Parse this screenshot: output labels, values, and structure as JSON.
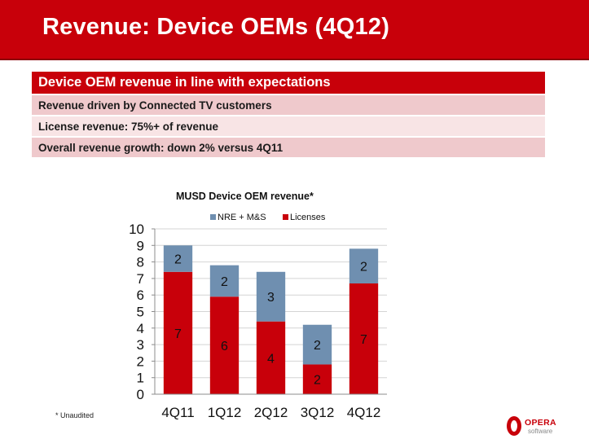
{
  "slide": {
    "title": "Revenue: Device OEMs (4Q12)"
  },
  "summary": {
    "heading": "Device OEM revenue in line with expectations",
    "bullets": [
      "Revenue driven by Connected TV customers",
      "License revenue: 75%+ of revenue",
      "Overall revenue growth: down 2% versus 4Q11"
    ]
  },
  "footnote": "* Unaudited",
  "logo": {
    "word": "OPERA",
    "sub": "software"
  },
  "colors": {
    "brand_red": "#c8000a",
    "licenses": "#c8000a",
    "nre": "#6f8fb0"
  },
  "chart_data": {
    "type": "bar",
    "stacked": true,
    "title": "MUSD Device OEM revenue*",
    "categories": [
      "4Q11",
      "1Q12",
      "2Q12",
      "3Q12",
      "4Q12"
    ],
    "series": [
      {
        "name": "Licenses",
        "values": [
          7.4,
          5.9,
          4.4,
          1.8,
          6.7
        ],
        "labels": [
          "7",
          "6",
          "4",
          "2",
          "7"
        ],
        "color": "#c8000a"
      },
      {
        "name": "NRE + M&S",
        "values": [
          1.6,
          1.9,
          3.0,
          2.4,
          2.1
        ],
        "labels": [
          "2",
          "2",
          "3",
          "2",
          "2"
        ],
        "color": "#6f8fb0"
      }
    ],
    "legend_order": [
      "NRE + M&S",
      "Licenses"
    ],
    "legend_position": "top",
    "xlabel": "",
    "ylabel": "",
    "ylim": [
      0,
      10
    ],
    "yticks": [
      0,
      1,
      2,
      3,
      4,
      5,
      6,
      7,
      8,
      9,
      10
    ],
    "grid": true
  }
}
